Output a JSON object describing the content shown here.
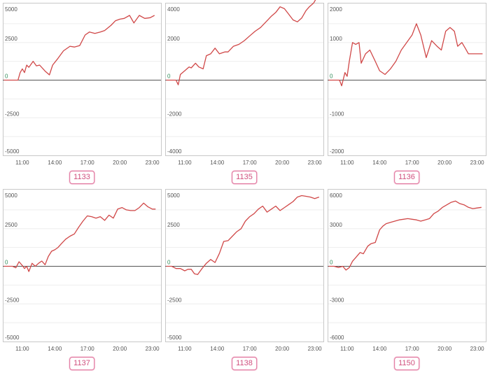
{
  "colors": {
    "line": "#d04848",
    "zero_line": "#555555",
    "frame": "#c8c8c8",
    "grid": "#eeeeee",
    "badge_border": "#e0709a",
    "badge_text": "#d0507e",
    "zero_label": "#2e8b57"
  },
  "chart_data": [
    {
      "type": "line",
      "label": "1133",
      "ylim": [
        -5000,
        5000
      ],
      "y_ticks": [
        5000,
        2500,
        0,
        -2500,
        -5000
      ],
      "y_tick_labels": [
        "5000",
        "2500",
        "0",
        "-2500",
        "-5000"
      ],
      "x_ticks": [
        11,
        14,
        17,
        20,
        23
      ],
      "x_tick_labels": [
        "11:00",
        "14:00",
        "17:00",
        "20:00",
        "23:00"
      ],
      "xlim": [
        9.2,
        23.8
      ],
      "grid": true,
      "x": [
        9.3,
        9.6,
        9.9,
        10.2,
        10.5,
        10.6,
        10.8,
        11.0,
        11.2,
        11.4,
        11.6,
        12.0,
        12.3,
        12.6,
        13.1,
        13.5,
        13.8,
        14.3,
        14.8,
        15.4,
        15.8,
        16.3,
        16.8,
        17.2,
        17.7,
        18.2,
        18.6,
        19.2,
        19.6,
        20.0,
        20.4,
        20.9,
        21.3,
        21.8,
        22.3,
        22.8,
        23.2
      ],
      "y": [
        0,
        0,
        0,
        0,
        0,
        0,
        500,
        750,
        500,
        1000,
        850,
        1250,
        950,
        1000,
        600,
        350,
        1000,
        1450,
        1950,
        2250,
        2200,
        2300,
        3000,
        3200,
        3100,
        3200,
        3300,
        3650,
        3950,
        4050,
        4100,
        4300,
        3800,
        4300,
        4100,
        4150,
        4300
      ]
    },
    {
      "type": "line",
      "label": "1135",
      "ylim": [
        -4000,
        4000
      ],
      "y_ticks": [
        4000,
        2000,
        0,
        -2000,
        -4000
      ],
      "y_tick_labels": [
        "4000",
        "2000",
        "0",
        "-2000",
        "-4000"
      ],
      "x_ticks": [
        11,
        14,
        17,
        20,
        23
      ],
      "x_tick_labels": [
        "11:00",
        "14:00",
        "17:00",
        "20:00",
        "23:00"
      ],
      "xlim": [
        9.2,
        23.8
      ],
      "grid": true,
      "x": [
        9.3,
        9.8,
        10.2,
        10.4,
        10.6,
        10.8,
        11.0,
        11.2,
        11.4,
        11.6,
        12.0,
        12.3,
        12.7,
        13.0,
        13.4,
        13.8,
        14.2,
        14.7,
        15.0,
        15.5,
        16.0,
        16.5,
        17.0,
        17.5,
        18.0,
        18.5,
        19.0,
        19.4,
        19.8,
        20.2,
        20.6,
        21.0,
        21.4,
        21.8,
        22.2,
        22.5,
        22.9,
        23.1,
        23.3
      ],
      "y": [
        0,
        0,
        0,
        -250,
        300,
        400,
        500,
        600,
        700,
        650,
        900,
        700,
        600,
        1300,
        1400,
        1700,
        1400,
        1500,
        1500,
        1800,
        1900,
        2100,
        2350,
        2600,
        2800,
        3100,
        3400,
        3600,
        3900,
        3800,
        3500,
        3200,
        3100,
        3300,
        3700,
        3900,
        4100,
        4300,
        4500
      ]
    },
    {
      "type": "line",
      "label": "1136",
      "ylim": [
        -2000,
        2000
      ],
      "y_ticks": [
        2000,
        1000,
        0,
        -1000,
        -2000
      ],
      "y_tick_labels": [
        "2000",
        "1000",
        "0",
        "-1000",
        "-2000"
      ],
      "x_ticks": [
        11,
        14,
        17,
        20,
        23
      ],
      "x_tick_labels": [
        "11:00",
        "14:00",
        "17:00",
        "20:00",
        "23:00"
      ],
      "xlim": [
        9.2,
        23.8
      ],
      "grid": true,
      "x": [
        9.3,
        9.8,
        10.3,
        10.5,
        10.8,
        11.0,
        11.2,
        11.5,
        11.8,
        12.1,
        12.3,
        12.7,
        13.1,
        13.6,
        14.0,
        14.5,
        15.0,
        15.5,
        16.0,
        16.5,
        17.0,
        17.4,
        17.8,
        18.3,
        18.8,
        19.3,
        19.7,
        20.1,
        20.5,
        20.9,
        21.2,
        21.6,
        21.9,
        22.2,
        22.6,
        23.0,
        23.3,
        23.5
      ],
      "y": [
        0,
        0,
        0,
        -150,
        200,
        100,
        500,
        1000,
        950,
        1000,
        450,
        700,
        800,
        500,
        250,
        150,
        300,
        500,
        800,
        1000,
        1200,
        1500,
        1200,
        600,
        1050,
        900,
        800,
        1300,
        1400,
        1300,
        900,
        1000,
        850,
        700,
        700,
        700,
        700,
        700
      ]
    },
    {
      "type": "line",
      "label": "1137",
      "ylim": [
        -5000,
        5000
      ],
      "y_ticks": [
        5000,
        2500,
        0,
        -2500,
        -5000
      ],
      "y_tick_labels": [
        "5000",
        "2500",
        "0",
        "-2500",
        "-5000"
      ],
      "x_ticks": [
        11,
        14,
        17,
        20,
        23
      ],
      "x_tick_labels": [
        "11:00",
        "14:00",
        "17:00",
        "20:00",
        "23:00"
      ],
      "xlim": [
        9.2,
        23.8
      ],
      "grid": true,
      "x": [
        9.3,
        9.7,
        10.1,
        10.4,
        10.7,
        11.0,
        11.2,
        11.4,
        11.6,
        11.9,
        12.2,
        12.5,
        12.8,
        13.1,
        13.4,
        13.7,
        14.0,
        14.3,
        14.6,
        15.0,
        15.4,
        15.8,
        16.2,
        16.6,
        17.0,
        17.4,
        17.8,
        18.2,
        18.6,
        19.0,
        19.4,
        19.8,
        20.2,
        20.6,
        21.0,
        21.4,
        21.8,
        22.2,
        22.6,
        23.0,
        23.3
      ],
      "y": [
        0,
        0,
        0,
        -100,
        300,
        50,
        -150,
        0,
        -350,
        200,
        0,
        200,
        350,
        100,
        650,
        1000,
        1100,
        1250,
        1500,
        1800,
        2000,
        2150,
        2600,
        3000,
        3350,
        3300,
        3200,
        3300,
        3050,
        3400,
        3200,
        3800,
        3900,
        3750,
        3700,
        3700,
        3900,
        4200,
        3950,
        3800,
        3800
      ]
    },
    {
      "type": "line",
      "label": "1138",
      "ylim": [
        -5000,
        5000
      ],
      "y_ticks": [
        5000,
        2500,
        0,
        -2500,
        -5000
      ],
      "y_tick_labels": [
        "5000",
        "2500",
        "0",
        "-2500",
        "-5000"
      ],
      "x_ticks": [
        11,
        14,
        17,
        20,
        23
      ],
      "x_tick_labels": [
        "11:00",
        "14:00",
        "17:00",
        "20:00",
        "23:00"
      ],
      "xlim": [
        9.2,
        23.8
      ],
      "grid": true,
      "x": [
        9.3,
        9.8,
        10.2,
        10.6,
        11.0,
        11.3,
        11.6,
        11.9,
        12.2,
        12.6,
        13.0,
        13.4,
        13.8,
        14.2,
        14.6,
        15.0,
        15.4,
        15.8,
        16.2,
        16.6,
        17.0,
        17.4,
        17.8,
        18.2,
        18.6,
        19.0,
        19.4,
        19.8,
        20.2,
        20.6,
        21.0,
        21.4,
        21.8,
        22.2,
        22.6,
        23.0,
        23.4
      ],
      "y": [
        0,
        0,
        -150,
        -150,
        -300,
        -200,
        -200,
        -500,
        -550,
        -150,
        200,
        450,
        250,
        850,
        1650,
        1700,
        2000,
        2300,
        2500,
        3000,
        3300,
        3500,
        3800,
        4000,
        3600,
        3800,
        4000,
        3700,
        3900,
        4100,
        4300,
        4600,
        4700,
        4650,
        4600,
        4500,
        4600
      ]
    },
    {
      "type": "line",
      "label": "1150",
      "ylim": [
        -6000,
        6000
      ],
      "y_ticks": [
        6000,
        3000,
        0,
        -3000,
        -6000
      ],
      "y_tick_labels": [
        "6000",
        "3000",
        "0",
        "-3000",
        "-6000"
      ],
      "x_ticks": [
        11,
        14,
        17,
        20,
        23
      ],
      "x_tick_labels": [
        "11:00",
        "14:00",
        "17:00",
        "20:00",
        "23:00"
      ],
      "xlim": [
        9.2,
        23.8
      ],
      "grid": true,
      "x": [
        9.3,
        9.8,
        10.2,
        10.6,
        10.9,
        11.2,
        11.5,
        11.9,
        12.2,
        12.5,
        12.9,
        13.2,
        13.6,
        14.0,
        14.3,
        14.6,
        15.0,
        15.4,
        15.8,
        16.2,
        16.6,
        17.0,
        17.4,
        17.8,
        18.2,
        18.6,
        19.0,
        19.4,
        19.8,
        20.2,
        20.6,
        21.0,
        21.4,
        21.8,
        22.2,
        22.6,
        23.0,
        23.4
      ],
      "y": [
        0,
        0,
        -100,
        0,
        -300,
        -100,
        400,
        800,
        1100,
        1000,
        1600,
        1800,
        1900,
        2900,
        3200,
        3400,
        3500,
        3600,
        3700,
        3750,
        3800,
        3750,
        3700,
        3600,
        3700,
        3800,
        4200,
        4400,
        4700,
        4900,
        5100,
        5200,
        5000,
        4900,
        4700,
        4600,
        4650,
        4700
      ]
    }
  ]
}
